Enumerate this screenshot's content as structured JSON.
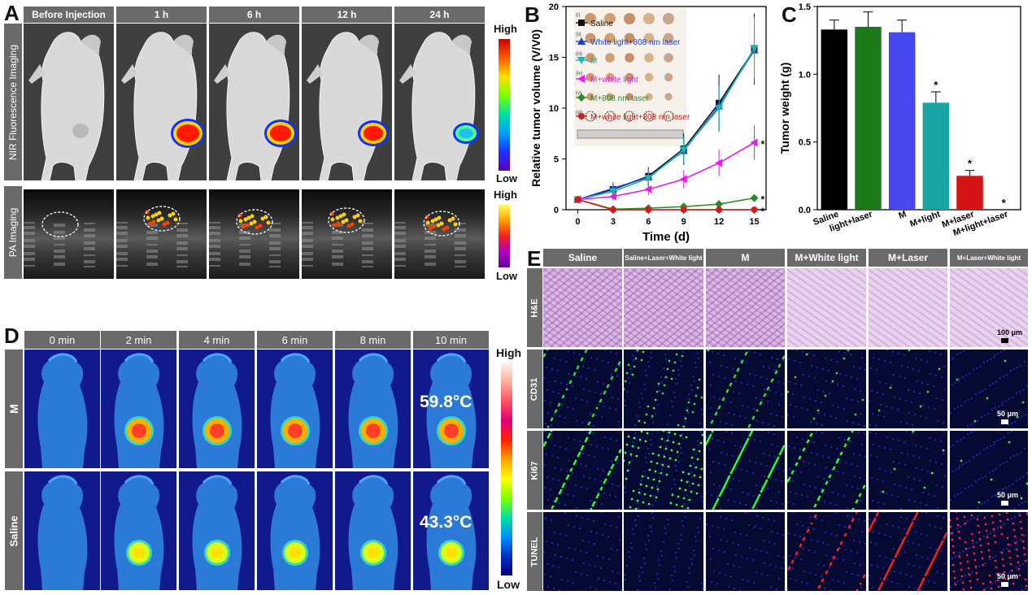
{
  "panels": {
    "A": {
      "letter": "A",
      "time_headers": [
        "Before Injection",
        "1 h",
        "6 h",
        "12 h",
        "24 h"
      ],
      "row_labels": [
        "NIR Fluorescence Imaging",
        "PA Imaging"
      ],
      "colorbar_high": "High",
      "colorbar_low": "Low",
      "colorbar2_high": "High",
      "colorbar2_low": "Low"
    },
    "B": {
      "letter": "B"
    },
    "C": {
      "letter": "C"
    },
    "D": {
      "letter": "D",
      "time_headers": [
        "0 min",
        "2 min",
        "4 min",
        "6 min",
        "8 min",
        "10 min"
      ],
      "row_labels": [
        "M",
        "Saline"
      ],
      "temps": [
        "59.8°C",
        "43.3°C"
      ],
      "colorbar_high": "High",
      "colorbar_low": "Low"
    },
    "E": {
      "letter": "E",
      "col_headers": [
        "Saline",
        "Saline+Laser+White light",
        "M",
        "M+White light",
        "M+Laser",
        "M+Laser+White light"
      ],
      "row_labels": [
        "H&E",
        "CD31",
        "Ki67",
        "TUNEL"
      ],
      "scale_labels": [
        "100 μm",
        "50 μm",
        "50 μm",
        "50 μm"
      ]
    }
  },
  "chart_data": [
    {
      "type": "line",
      "panel": "B",
      "xlabel": "Time (d)",
      "ylabel": "Relative tumor volume (V/V0)",
      "x": [
        0,
        3,
        6,
        9,
        12,
        15
      ],
      "xlim": [
        -1,
        16
      ],
      "ylim": [
        0,
        20
      ],
      "xticks": [
        "0",
        "3",
        "6",
        "9",
        "12",
        "15"
      ],
      "yticks": [
        "0",
        "5",
        "10",
        "15",
        "20"
      ],
      "series": [
        {
          "name": "Saline",
          "color": "#111111",
          "marker": "square",
          "values": [
            1,
            2.0,
            3.3,
            6.0,
            10.5,
            15.8
          ],
          "err": [
            0.1,
            0.6,
            0.9,
            1.5,
            2.8,
            3.5
          ]
        },
        {
          "name": "White light+808 nm laser",
          "color": "#1f3fd1",
          "marker": "triangle-up",
          "values": [
            1,
            2.1,
            3.2,
            5.8,
            10.2,
            15.7
          ],
          "err": [
            0.1,
            0.6,
            1.0,
            1.4,
            2.5,
            3.3
          ]
        },
        {
          "name": "M",
          "color": "#1ab3b3",
          "marker": "triangle-down",
          "values": [
            1,
            1.8,
            3.1,
            5.9,
            10.0,
            15.9
          ],
          "err": [
            0.1,
            0.7,
            0.9,
            1.3,
            2.2,
            3.0
          ]
        },
        {
          "name": "M+white light",
          "color": "#e81be8",
          "marker": "triangle-left",
          "values": [
            1,
            1.3,
            2.0,
            3.0,
            4.6,
            6.6
          ],
          "err": [
            0.1,
            0.4,
            0.6,
            0.9,
            1.3,
            1.7
          ]
        },
        {
          "name": "M+808 nm laser",
          "color": "#2a8a2a",
          "marker": "diamond",
          "values": [
            1,
            0.05,
            0.15,
            0.3,
            0.55,
            1.15
          ],
          "err": [
            0.1,
            0.05,
            0.08,
            0.1,
            0.15,
            0.35
          ]
        },
        {
          "name": "M+white light+808 nm laser",
          "color": "#d41b1b",
          "marker": "circle",
          "values": [
            1,
            0,
            0,
            0,
            0,
            0
          ],
          "err": [
            0.1,
            0,
            0,
            0,
            0,
            0
          ]
        }
      ],
      "inset_roman": [
        "(i)",
        "(ii)",
        "(iii)",
        "(iv)",
        "(v)",
        "(vi)"
      ],
      "significance": [
        "*",
        "*",
        "*"
      ]
    },
    {
      "type": "bar",
      "panel": "C",
      "ylabel": "Tumor weight (g)",
      "ylim": [
        0,
        1.5
      ],
      "yticks": [
        "0.0",
        "0.5",
        "1.0",
        "1.5"
      ],
      "categories": [
        "Saline",
        "light+laser",
        "M",
        "M+light",
        "M+laser",
        "M+light+laser"
      ],
      "values": [
        1.33,
        1.35,
        1.31,
        0.79,
        0.25,
        0.0
      ],
      "err": [
        0.07,
        0.11,
        0.09,
        0.08,
        0.04,
        0.0
      ],
      "colors": [
        "#000000",
        "#1b7a1b",
        "#4747f0",
        "#1aa3a3",
        "#d41414",
        "#ffffff"
      ],
      "stars": [
        "",
        "",
        "",
        "*",
        "*",
        "*"
      ]
    }
  ]
}
